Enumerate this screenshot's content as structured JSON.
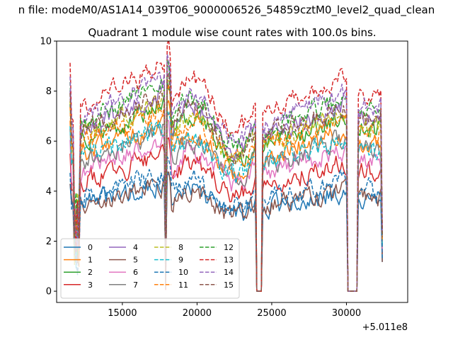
{
  "chart_data": {
    "type": "line",
    "suptitle": "n file: modeM0/AS1A14_039T06_9000006526_54859cztM0_level2_quad_clean",
    "title": "Quadrant 1 module wise count rates with 100.0s bins.",
    "xlabel": "",
    "ylabel": "",
    "x_offset_label": "+5.011e8",
    "xlim": [
      10600,
      34100
    ],
    "ylim": [
      -0.45,
      10
    ],
    "xticks": [
      15000,
      20000,
      25000,
      30000
    ],
    "xtick_labels": [
      "15000",
      "20000",
      "25000",
      "30000"
    ],
    "yticks": [
      0,
      2,
      4,
      6,
      8,
      10
    ],
    "ytick_labels": [
      "0",
      "2",
      "4",
      "6",
      "8",
      "10"
    ],
    "grid": false,
    "legend_location": "lower-left",
    "legend_columns": 4,
    "x_range": [
      11500,
      32400
    ],
    "bin_seconds": 100,
    "gaps": [
      [
        24000,
        24300
      ],
      [
        30100,
        30700
      ]
    ],
    "dips": [
      [
        11800,
        12100
      ],
      [
        17900,
        18100
      ]
    ],
    "series": [
      {
        "name": "0",
        "color": "#1f77b4",
        "dash": "solid",
        "level": 3.9
      },
      {
        "name": "1",
        "color": "#ff7f0e",
        "dash": "solid",
        "level": 6.2
      },
      {
        "name": "2",
        "color": "#2ca02c",
        "dash": "solid",
        "level": 6.8
      },
      {
        "name": "3",
        "color": "#d62728",
        "dash": "solid",
        "level": 5.0
      },
      {
        "name": "4",
        "color": "#9467bd",
        "dash": "solid",
        "level": 7.3
      },
      {
        "name": "5",
        "color": "#8c564b",
        "dash": "solid",
        "level": 3.9
      },
      {
        "name": "6",
        "color": "#e377c2",
        "dash": "solid",
        "level": 5.5
      },
      {
        "name": "7",
        "color": "#7f7f7f",
        "dash": "solid",
        "level": 5.9
      },
      {
        "name": "8",
        "color": "#bcbd22",
        "dash": "dashed",
        "level": 6.9
      },
      {
        "name": "9",
        "color": "#17becf",
        "dash": "dashed",
        "level": 6.0
      },
      {
        "name": "10",
        "color": "#1f77b4",
        "dash": "dashed",
        "level": 4.3
      },
      {
        "name": "11",
        "color": "#ff7f0e",
        "dash": "dashed",
        "level": 6.7
      },
      {
        "name": "12",
        "color": "#2ca02c",
        "dash": "dashed",
        "level": 7.6
      },
      {
        "name": "13",
        "color": "#d62728",
        "dash": "dashed",
        "level": 8.3
      },
      {
        "name": "14",
        "color": "#9467bd",
        "dash": "dashed",
        "level": 7.8
      },
      {
        "name": "15",
        "color": "#8c564b",
        "dash": "dashed",
        "level": 7.2
      }
    ]
  }
}
